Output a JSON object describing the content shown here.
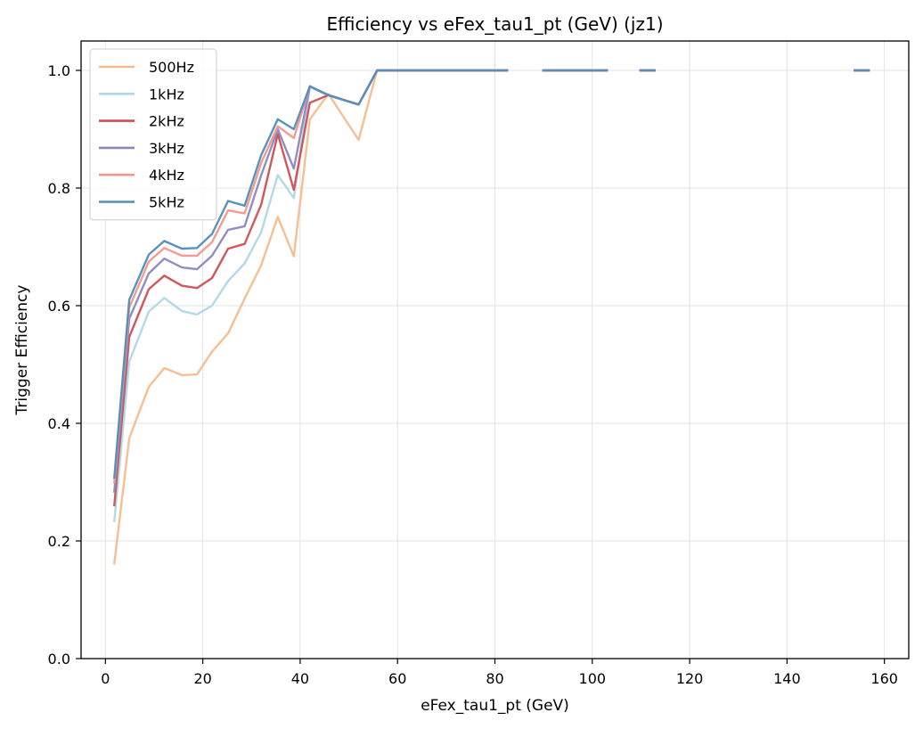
{
  "chart_data": {
    "type": "line",
    "title": "Efficiency vs eFex_tau1_pt (GeV) (jz1)",
    "xlabel": "eFex_tau1_pt (GeV)",
    "ylabel": "Trigger Efficiency",
    "xlim": [
      -5,
      165
    ],
    "ylim": [
      0,
      1.05
    ],
    "xticks": [
      0,
      20,
      40,
      60,
      80,
      100,
      120,
      140,
      160
    ],
    "yticks": [
      0.0,
      0.2,
      0.4,
      0.6,
      0.8,
      1.0
    ],
    "grid": true,
    "legend_position": "upper-left",
    "x": [
      1.8,
      4.9,
      8.9,
      12.1,
      15.7,
      18.8,
      21.9,
      25.2,
      28.6,
      32.0,
      35.4,
      38.7,
      42.0,
      45.8,
      52.0,
      55.8,
      59.7,
      62.7,
      66.7,
      69.7,
      73.1,
      76.4,
      79.4,
      82.7,
      89.7,
      93.0,
      96.5,
      99.8,
      103.2,
      109.7,
      113.0,
      153.7,
      157.0
    ],
    "series": [
      {
        "name": "500Hz",
        "color": "#f4bc8c",
        "values": [
          0.16,
          0.375,
          0.462,
          0.494,
          0.482,
          0.483,
          0.522,
          0.553,
          0.612,
          0.669,
          0.751,
          0.684,
          0.917,
          0.96,
          0.882,
          1.0,
          1.0,
          1.0,
          1.0,
          1.0,
          1.0,
          1.0,
          1.0,
          1.0,
          1.0,
          1.0,
          1.0,
          1.0,
          1.0,
          1.0,
          1.0,
          1.0,
          1.0
        ]
      },
      {
        "name": "1kHz",
        "color": "#add8e6",
        "values": [
          0.232,
          0.505,
          0.59,
          0.613,
          0.591,
          0.585,
          0.6,
          0.642,
          0.672,
          0.725,
          0.822,
          0.783,
          0.972,
          0.957,
          0.942,
          1.0,
          1.0,
          1.0,
          1.0,
          1.0,
          1.0,
          1.0,
          1.0,
          1.0,
          1.0,
          1.0,
          1.0,
          1.0,
          1.0,
          1.0,
          1.0,
          1.0,
          1.0
        ]
      },
      {
        "name": "2kHz",
        "color": "#cd4f54",
        "values": [
          0.259,
          0.547,
          0.628,
          0.651,
          0.634,
          0.63,
          0.647,
          0.697,
          0.705,
          0.772,
          0.892,
          0.797,
          0.945,
          0.958,
          0.942,
          1.0,
          1.0,
          1.0,
          1.0,
          1.0,
          1.0,
          1.0,
          1.0,
          1.0,
          1.0,
          1.0,
          1.0,
          1.0,
          1.0,
          1.0,
          1.0,
          1.0,
          1.0
        ]
      },
      {
        "name": "3kHz",
        "color": "#8888c0",
        "values": [
          0.282,
          0.578,
          0.655,
          0.68,
          0.665,
          0.662,
          0.685,
          0.729,
          0.735,
          0.822,
          0.9,
          0.833,
          0.973,
          0.958,
          0.942,
          1.0,
          1.0,
          1.0,
          1.0,
          1.0,
          1.0,
          1.0,
          1.0,
          1.0,
          1.0,
          1.0,
          1.0,
          1.0,
          1.0,
          1.0,
          1.0,
          1.0,
          1.0
        ]
      },
      {
        "name": "4kHz",
        "color": "#f4978c",
        "values": [
          0.298,
          0.597,
          0.675,
          0.698,
          0.685,
          0.685,
          0.708,
          0.762,
          0.757,
          0.843,
          0.905,
          0.885,
          0.973,
          0.958,
          0.942,
          1.0,
          1.0,
          1.0,
          1.0,
          1.0,
          1.0,
          1.0,
          1.0,
          1.0,
          1.0,
          1.0,
          1.0,
          1.0,
          1.0,
          1.0,
          1.0,
          1.0,
          1.0
        ]
      },
      {
        "name": "5kHz",
        "color": "#4f8dbc",
        "values": [
          0.306,
          0.61,
          0.687,
          0.71,
          0.697,
          0.698,
          0.722,
          0.778,
          0.77,
          0.856,
          0.917,
          0.9,
          0.973,
          0.958,
          0.942,
          1.0,
          1.0,
          1.0,
          1.0,
          1.0,
          1.0,
          1.0,
          1.0,
          1.0,
          1.0,
          1.0,
          1.0,
          1.0,
          1.0,
          1.0,
          1.0,
          1.0,
          1.0
        ]
      }
    ],
    "segments": [
      [
        0,
        23
      ],
      [
        24,
        28
      ],
      [
        29,
        30
      ],
      [
        31,
        32
      ]
    ]
  }
}
